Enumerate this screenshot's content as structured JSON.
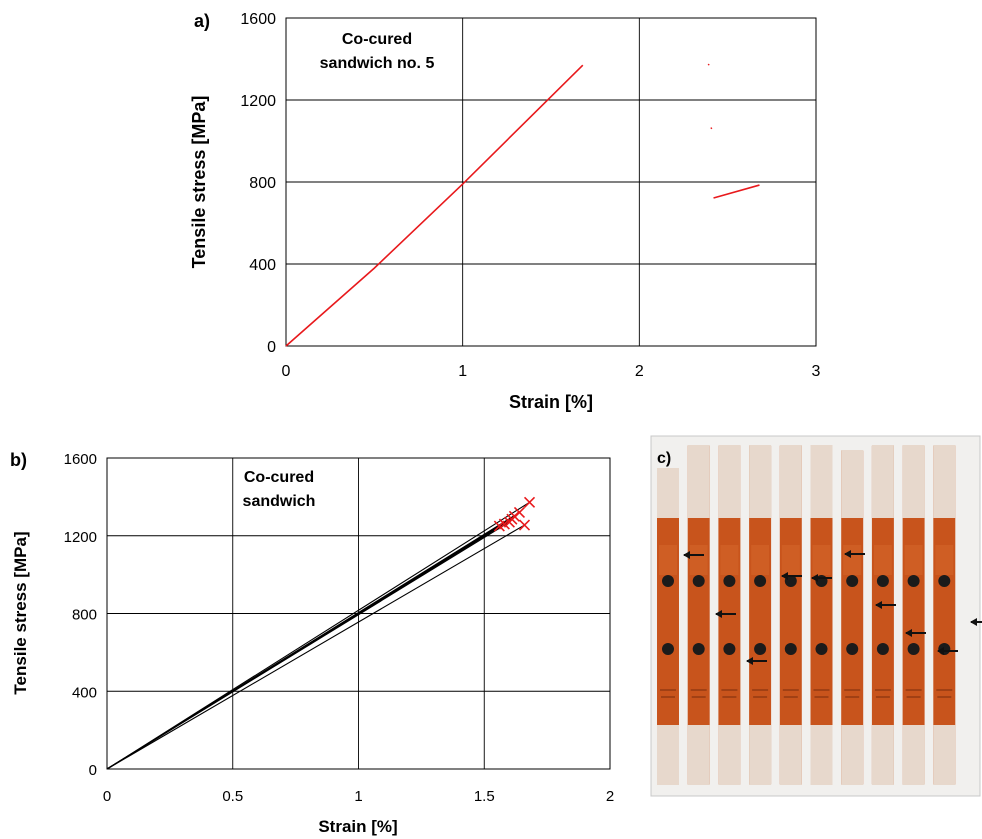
{
  "chart_data": [
    {
      "panel_label": "a)",
      "type": "line",
      "annotation": [
        "Co-cured",
        "sandwich no. 5"
      ],
      "xlabel": "Strain [%]",
      "ylabel": "Tensile stress [MPa]",
      "xlim": [
        0,
        3
      ],
      "ylim": [
        0,
        1600
      ],
      "xticks": [
        0,
        1,
        2,
        3
      ],
      "yticks": [
        0,
        400,
        800,
        1200,
        1600
      ],
      "grid": true,
      "series": [
        {
          "color": "#e8191c",
          "points": [
            [
              0,
              0
            ],
            [
              0.5,
              380
            ],
            [
              1.0,
              790
            ],
            [
              1.68,
              1370
            ]
          ]
        },
        {
          "color": "#e8191c",
          "points": [
            [
              2.42,
              722
            ],
            [
              2.68,
              785
            ]
          ]
        },
        {
          "color": "#e8191c",
          "points": [
            [
              2.39,
              1370
            ],
            [
              2.395,
              1375
            ]
          ]
        },
        {
          "color": "#e8191c",
          "points": [
            [
              2.405,
              1060
            ],
            [
              2.41,
              1065
            ]
          ]
        }
      ]
    },
    {
      "panel_label": "b)",
      "type": "line",
      "annotation": [
        "Co-cured",
        "sandwich"
      ],
      "xlabel": "Strain [%]",
      "ylabel": "Tensile stress [MPa]",
      "xlim": [
        0,
        2
      ],
      "ylim": [
        0,
        1600
      ],
      "xticks": [
        0,
        0.5,
        1,
        1.5,
        2
      ],
      "ytick_labels_shown": [
        0,
        400,
        800,
        1200,
        1600
      ],
      "yticks": [
        0,
        400,
        800,
        1200,
        1600
      ],
      "grid": true,
      "series": [
        {
          "color": "#000000",
          "points": [
            [
              0,
              0
            ],
            [
              1.68,
              1372
            ]
          ]
        },
        {
          "color": "#000000",
          "points": [
            [
              0,
              0
            ],
            [
              1.64,
              1320
            ]
          ]
        },
        {
          "color": "#000000",
          "points": [
            [
              0,
              0
            ],
            [
              1.62,
              1300
            ]
          ]
        },
        {
          "color": "#000000",
          "points": [
            [
              0,
              0
            ],
            [
              1.61,
              1285
            ]
          ]
        },
        {
          "color": "#000000",
          "points": [
            [
              0,
              0
            ],
            [
              1.6,
              1270
            ]
          ]
        },
        {
          "color": "#000000",
          "points": [
            [
              0,
              0
            ],
            [
              1.58,
              1260
            ]
          ]
        },
        {
          "color": "#000000",
          "points": [
            [
              0,
              0
            ],
            [
              1.56,
              1250
            ]
          ]
        },
        {
          "color": "#000000",
          "points": [
            [
              0,
              0
            ],
            [
              1.66,
              1255
            ]
          ]
        }
      ],
      "failure_markers": {
        "color": "#e8191c",
        "symbol": "x",
        "points": [
          [
            1.68,
            1372
          ],
          [
            1.64,
            1320
          ],
          [
            1.62,
            1300
          ],
          [
            1.61,
            1285
          ],
          [
            1.6,
            1270
          ],
          [
            1.58,
            1260
          ],
          [
            1.56,
            1250
          ],
          [
            1.66,
            1255
          ]
        ]
      }
    }
  ],
  "photo": {
    "panel_label": "c)",
    "description_colors": {
      "specimen": "#c8541c",
      "tab": "#e7d8cc",
      "backdrop": "#efeeec",
      "dot": "#1b1b1b"
    },
    "specimen_count": 10
  }
}
